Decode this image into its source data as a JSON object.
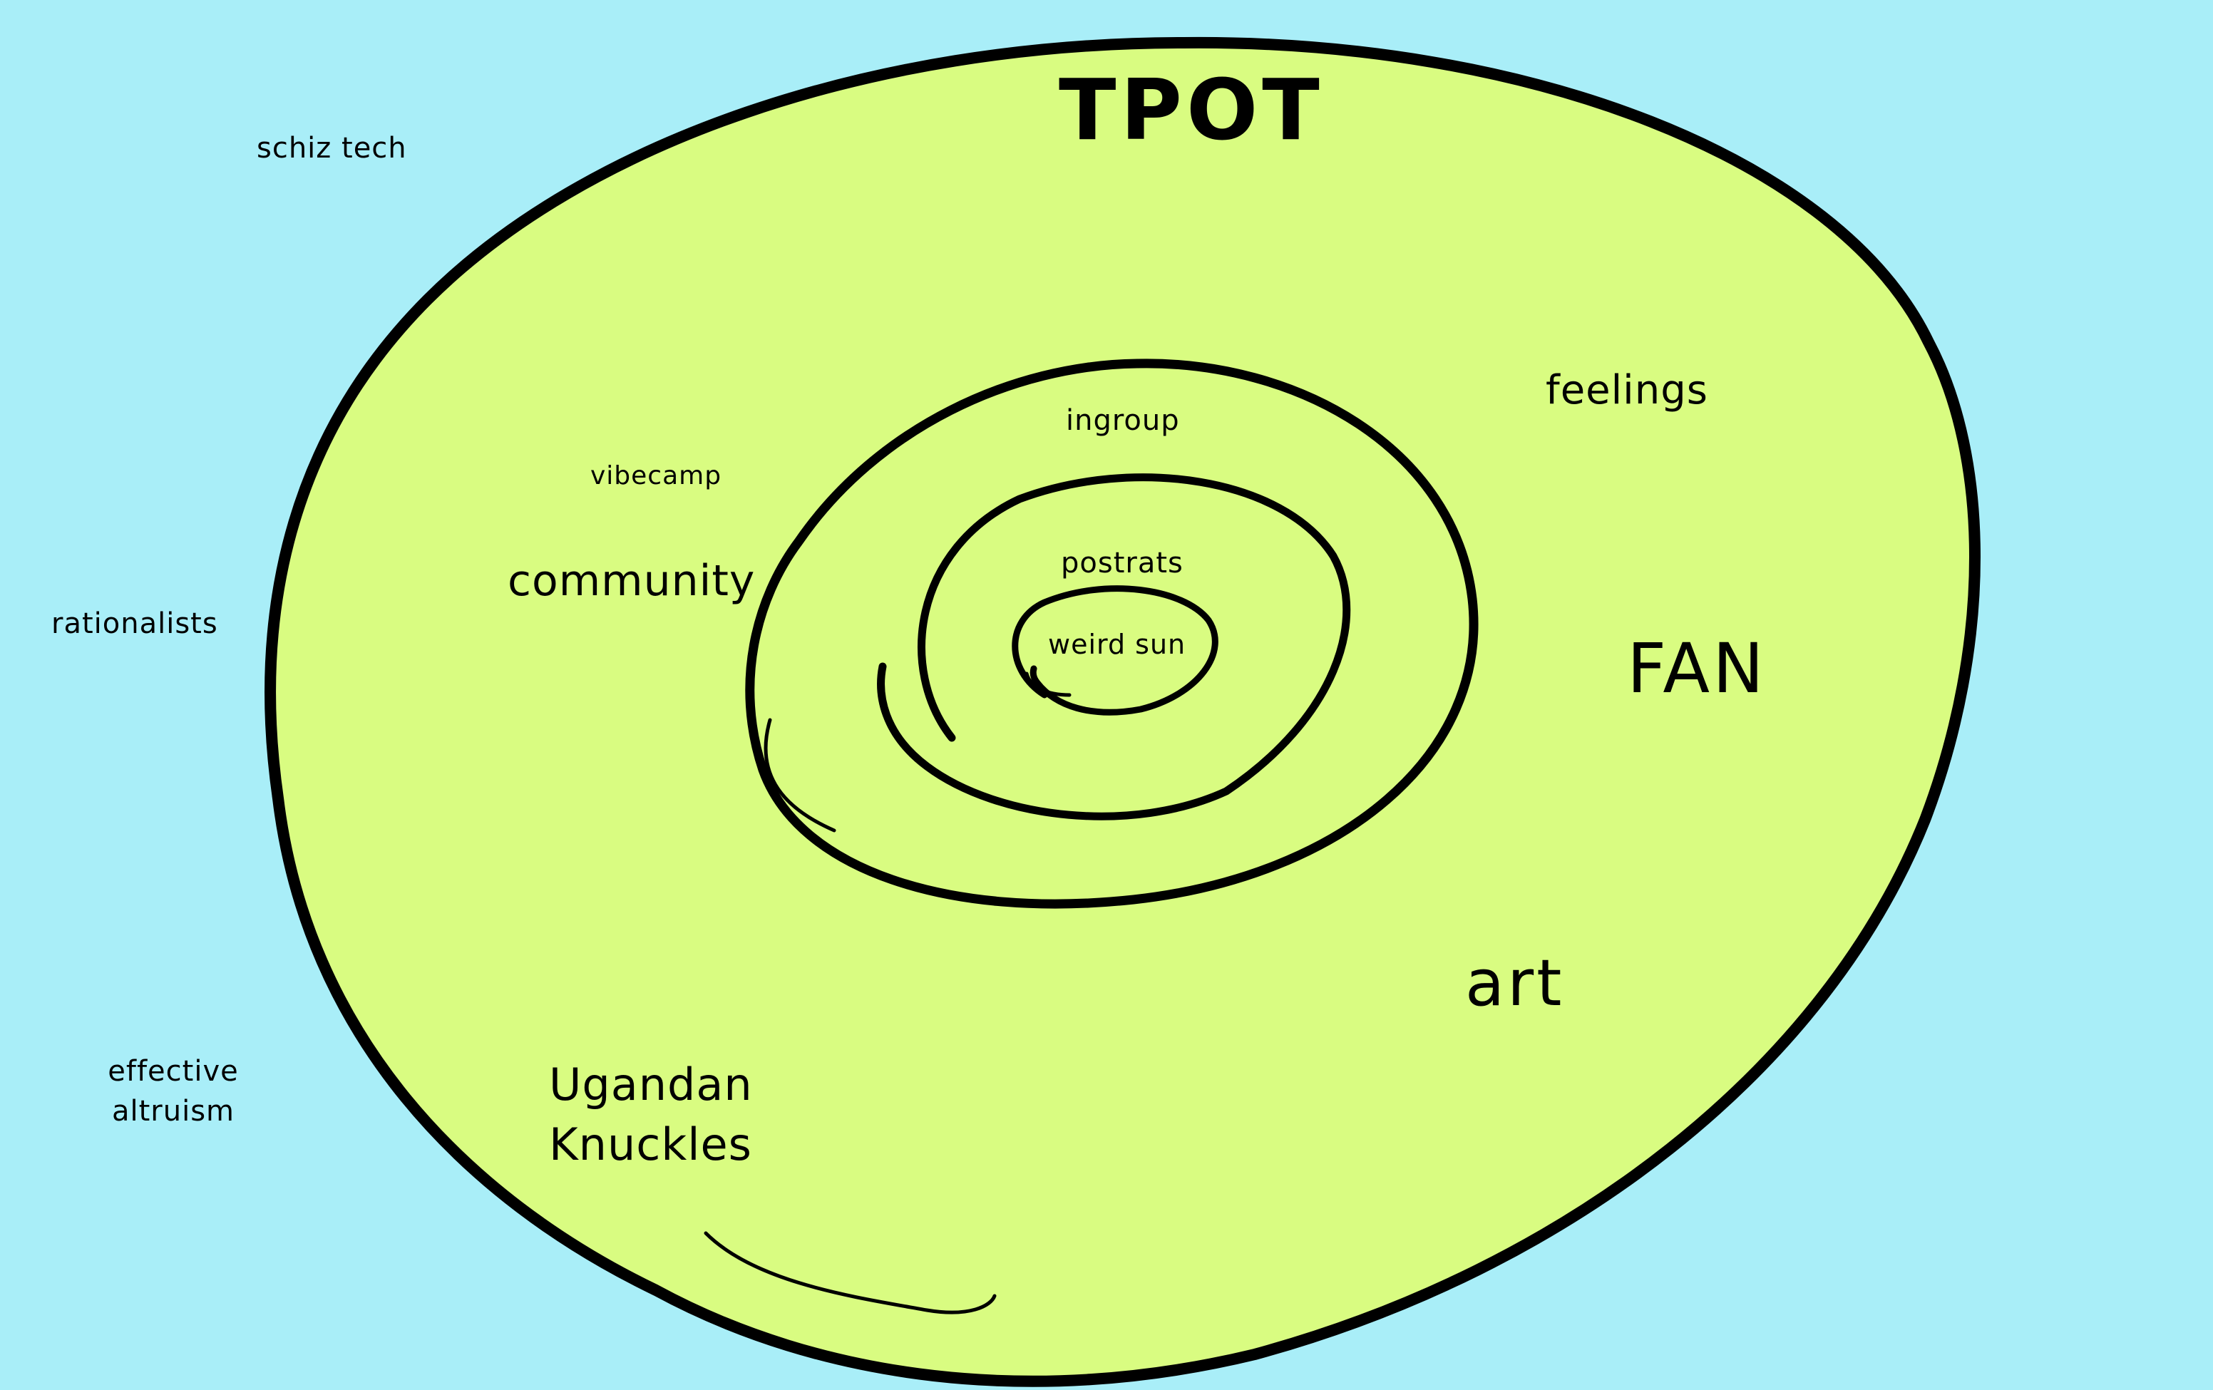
{
  "colors": {
    "background": "#a9eef8",
    "blob_fill": "#d9fc81",
    "stroke": "#000000",
    "text": "#000000"
  },
  "labels": {
    "tpot": "TPOT",
    "schiz_tech": "schiz tech",
    "feelings": "feelings",
    "ingroup": "ingroup",
    "vibecamp": "vibecamp",
    "community": "community",
    "postrats": "postrats",
    "weird_sun": "weird sun",
    "rationalists": "rationalists",
    "fan": "FAN",
    "art": "art",
    "effective_line1": "effective",
    "effective_line2": "altruism",
    "ugandan_line1": "Ugandan",
    "ugandan_line2": "Knuckles"
  }
}
